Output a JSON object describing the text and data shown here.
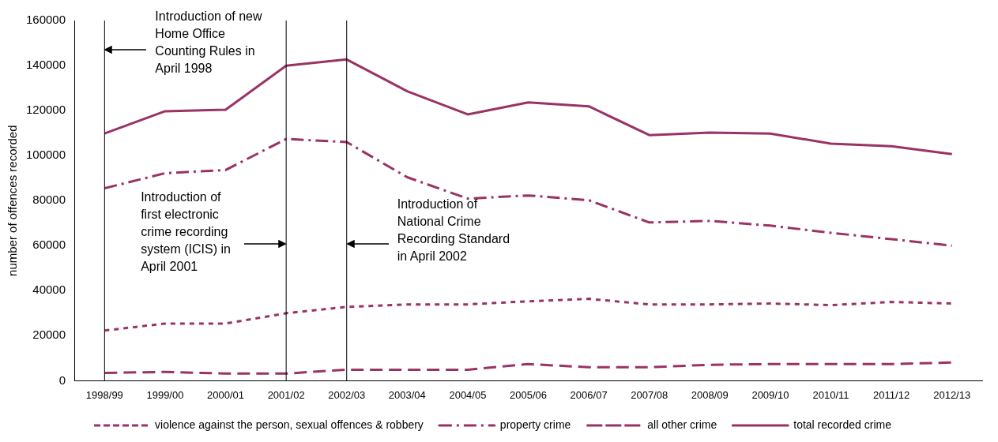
{
  "chart_data": {
    "type": "line",
    "ylabel": "number of offences recorded",
    "categories": [
      "1998/99",
      "1999/00",
      "2000/01",
      "2001/02",
      "2002/03",
      "2003/04",
      "2004/05",
      "2005/06",
      "2006/07",
      "2007/08",
      "2008/09",
      "2009/10",
      "2010/11",
      "2011/12",
      "2012/13"
    ],
    "series": [
      {
        "name": "violence against the person, sexual offences & robbery",
        "color": "#993366",
        "line_style": "dotted",
        "values": [
          22300,
          25400,
          25400,
          30000,
          32800,
          33900,
          33900,
          35300,
          36400,
          33900,
          33900,
          34300,
          33600,
          35000,
          34300
        ]
      },
      {
        "name": "property crime",
        "color": "#993366",
        "line_style": "dashdot",
        "values": [
          85500,
          92200,
          93600,
          107400,
          106000,
          90400,
          80900,
          82300,
          80200,
          70300,
          71000,
          68900,
          65700,
          62900,
          60000
        ]
      },
      {
        "name": "all other crime",
        "color": "#993366",
        "line_style": "dashed",
        "values": [
          3500,
          3900,
          3200,
          3200,
          4900,
          4900,
          4900,
          7400,
          6000,
          6000,
          7100,
          7400,
          7400,
          7400,
          8100
        ]
      },
      {
        "name": "total recorded crime",
        "color": "#993366",
        "line_style": "solid",
        "values": [
          109800,
          119700,
          120400,
          139900,
          142700,
          128600,
          118300,
          123600,
          121900,
          109100,
          110200,
          109800,
          105300,
          104200,
          100700
        ]
      }
    ],
    "ylim": [
      0,
      160000
    ],
    "yticks": [
      0,
      20000,
      40000,
      60000,
      80000,
      100000,
      120000,
      140000,
      160000
    ],
    "grid": false,
    "legend": "bottom",
    "marker": "none",
    "ref_lines": [
      {
        "axis": "x",
        "value": "1998/99",
        "label": "Introduction of new\nHome Office\nCounting Rules in\nApril 1998",
        "color": "#000000"
      },
      {
        "axis": "x",
        "value": "2001/02",
        "label": "Introduction of\nfirst electronic\ncrime recording\nsystem (ICIS) in\nApril 2001",
        "color": "#000000"
      },
      {
        "axis": "x",
        "value": "2002/03",
        "label": "Introduction of\nNational Crime\nRecording Standard\nin April 2002",
        "color": "#000000"
      }
    ]
  }
}
